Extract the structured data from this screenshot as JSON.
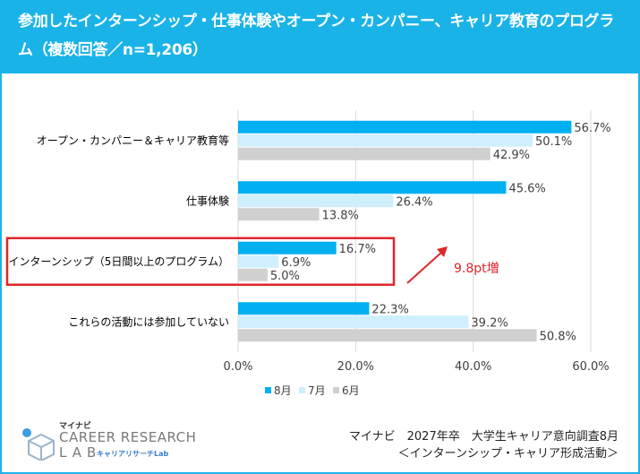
{
  "header": {
    "title": "参加したインターンシップ・仕事体験やオープン・カンパニー、キャリア教育のプログラム（複数回答／n=1,206）"
  },
  "chart_data": {
    "type": "bar",
    "orientation": "horizontal",
    "categories": [
      "オープン・カンパニー＆キャリア教育等",
      "仕事体験",
      "インターンシップ（5日間以上のプログラム）",
      "これらの活動には参加していない"
    ],
    "series": [
      {
        "name": "8月",
        "values": [
          56.7,
          45.6,
          16.7,
          22.3
        ],
        "labels": [
          "56.7%",
          "45.6%",
          "16.7%",
          "22.3%"
        ],
        "color": "#00b0f0"
      },
      {
        "name": "7月",
        "values": [
          50.1,
          26.4,
          6.9,
          39.2
        ],
        "labels": [
          "50.1%",
          "26.4%",
          "6.9%",
          "39.2%"
        ],
        "color": "#cfeffc"
      },
      {
        "name": "6月",
        "values": [
          42.9,
          13.8,
          5.0,
          50.8
        ],
        "labels": [
          "42.9%",
          "13.8%",
          "5.0%",
          "50.8%"
        ],
        "color": "#d0d0d0"
      }
    ],
    "xlim": [
      0,
      60
    ],
    "xticks": [
      "0.0%",
      "20.0%",
      "40.0%",
      "60.0%"
    ],
    "xtick_values": [
      0,
      20,
      40,
      60
    ],
    "grid": true,
    "legend_position": "bottom",
    "highlight_category": "インターンシップ（5日間以上のプログラム）",
    "highlight_color": "#e0262b",
    "annotation": {
      "text": "9.8pt増",
      "color": "#e0262b"
    }
  },
  "logo": {
    "top": "マイナビ",
    "line1": "CAREER RESEARCH",
    "line2": "LAB",
    "sub": "キャリアリサーチLab"
  },
  "source": {
    "line1": "マイナビ　2027年卒　大学生キャリア意向調査8月",
    "line2": "＜インターンシップ・キャリア形成活動＞"
  }
}
